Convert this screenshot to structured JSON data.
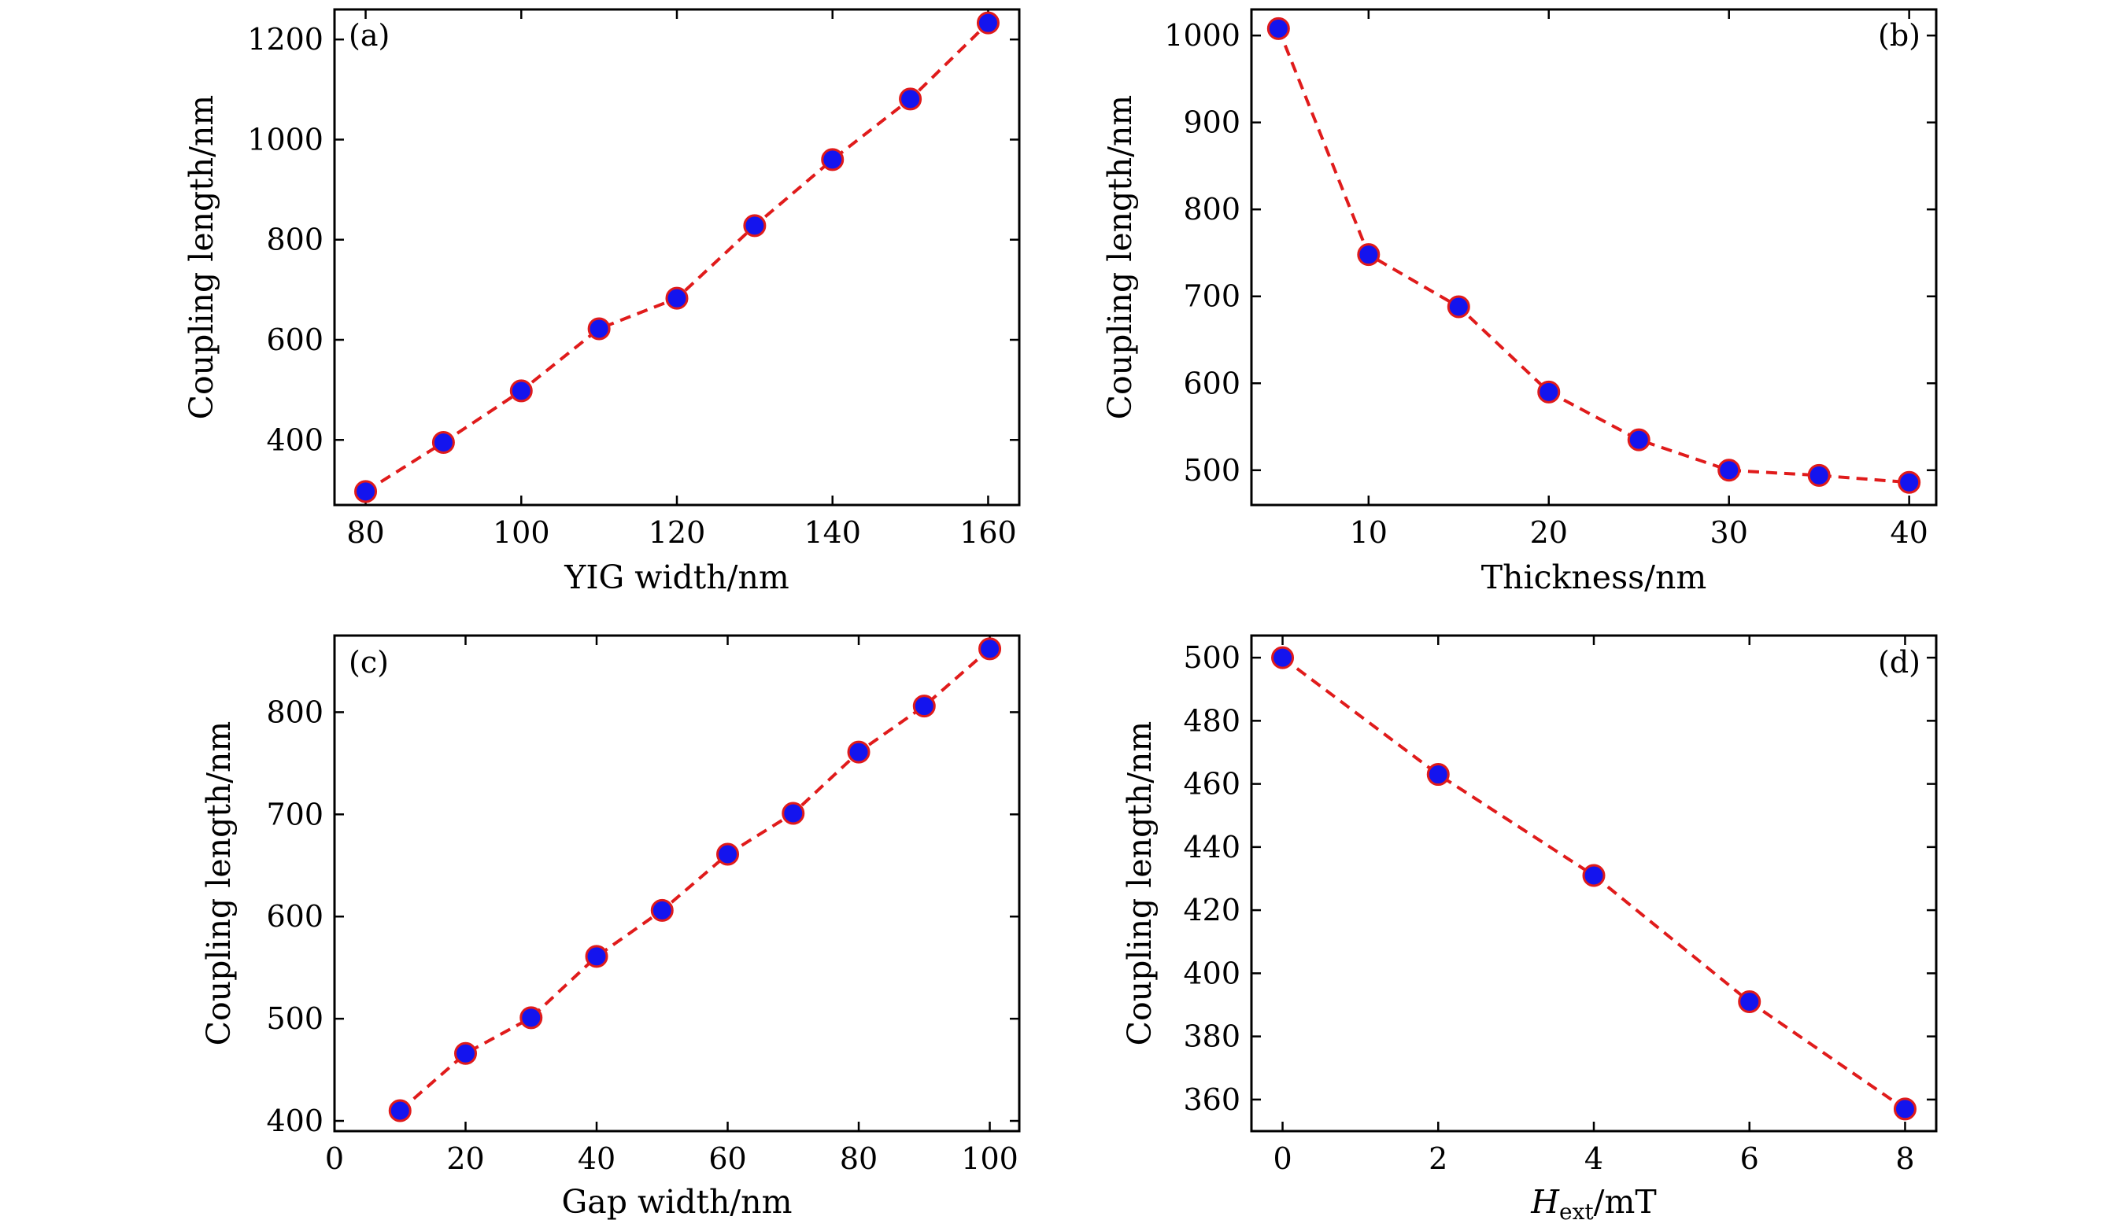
{
  "colors": {
    "line": "#e01b1b",
    "marker_fill": "#1414ee",
    "marker_edge": "#e01b1b"
  },
  "chart_data": [
    {
      "type": "line",
      "panel": "(a)",
      "xlabel": "YIG width/nm",
      "ylabel": "Coupling length/nm",
      "x": [
        80,
        90,
        100,
        110,
        120,
        130,
        140,
        150,
        160
      ],
      "series": [
        {
          "name": "Coupling length",
          "values": [
            297,
            395,
            498,
            622,
            683,
            828,
            960,
            1081,
            1233
          ]
        }
      ],
      "xlim": [
        76,
        164
      ],
      "ylim": [
        270,
        1260
      ],
      "xticks": [
        80,
        100,
        120,
        140,
        160
      ],
      "yticks": [
        400,
        600,
        800,
        1000,
        1200
      ]
    },
    {
      "type": "line",
      "panel": "(b)",
      "xlabel": "Thickness/nm",
      "ylabel": "Coupling length/nm",
      "x": [
        5,
        10,
        15,
        20,
        25,
        30,
        35,
        40
      ],
      "series": [
        {
          "name": "Coupling length",
          "values": [
            1008,
            748,
            688,
            590,
            535,
            500,
            494,
            486
          ]
        }
      ],
      "xlim": [
        3.5,
        41.5
      ],
      "ylim": [
        460,
        1030
      ],
      "xticks": [
        10,
        20,
        30,
        40
      ],
      "yticks": [
        500,
        600,
        700,
        800,
        900,
        1000
      ]
    },
    {
      "type": "line",
      "panel": "(c)",
      "xlabel": "Gap width/nm",
      "ylabel": "Coupling length/nm",
      "x": [
        10,
        20,
        30,
        40,
        50,
        60,
        70,
        80,
        90,
        100
      ],
      "series": [
        {
          "name": "Coupling length",
          "values": [
            410,
            466,
            501,
            561,
            606,
            661,
            701,
            761,
            806,
            862
          ]
        }
      ],
      "xlim": [
        0,
        104.5
      ],
      "ylim": [
        390,
        875
      ],
      "xticks": [
        0,
        20,
        40,
        60,
        80,
        100
      ],
      "yticks": [
        400,
        500,
        600,
        700,
        800
      ]
    },
    {
      "type": "line",
      "panel": "(d)",
      "xlabel_main": "H",
      "xlabel_sub": "ext",
      "xlabel_unit": "/mT",
      "ylabel": "Coupling length/nm",
      "x": [
        0,
        2,
        4,
        6,
        8
      ],
      "series": [
        {
          "name": "Coupling length",
          "values": [
            500,
            463,
            431,
            391,
            357
          ]
        }
      ],
      "xlim": [
        -0.4,
        8.4
      ],
      "ylim": [
        350,
        507
      ],
      "xticks": [
        0,
        2,
        4,
        6,
        8
      ],
      "yticks": [
        360,
        380,
        400,
        420,
        440,
        460,
        480,
        500
      ]
    }
  ]
}
